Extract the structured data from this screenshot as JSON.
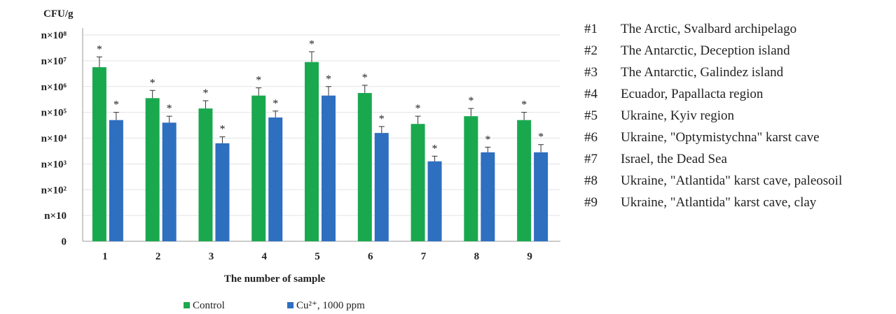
{
  "chart_data": {
    "type": "bar",
    "ylabel": "CFU/g",
    "xlabel": "The number  of sample",
    "scale": "log",
    "y_tick_labels": [
      "0",
      "n×10",
      "n×10²",
      "n×10³",
      "n×10⁴",
      "n×10⁵",
      "n×10⁶",
      "n×10⁷",
      "n×10⁸"
    ],
    "ylim_exponent": [
      0,
      8
    ],
    "categories": [
      "1",
      "2",
      "3",
      "4",
      "5",
      "6",
      "7",
      "8",
      "9"
    ],
    "series": [
      {
        "name": "Control",
        "color": "#1aa84f",
        "values_log10": [
          6.75,
          5.55,
          5.15,
          5.65,
          6.95,
          5.75,
          4.55,
          4.85,
          4.7
        ],
        "errors_log10": [
          0.4,
          0.3,
          0.3,
          0.3,
          0.4,
          0.3,
          0.3,
          0.3,
          0.3
        ],
        "significance": [
          "*",
          "*",
          "*",
          "*",
          "*",
          "*",
          "*",
          "*",
          "*"
        ]
      },
      {
        "name": "Cu²⁺, 1000 ppm",
        "color": "#2e6fbf",
        "values_log10": [
          4.7,
          4.6,
          3.8,
          4.8,
          5.65,
          4.2,
          3.1,
          3.45,
          3.45
        ],
        "errors_log10": [
          0.3,
          0.25,
          0.25,
          0.25,
          0.35,
          0.25,
          0.2,
          0.2,
          0.3
        ],
        "significance": [
          "*",
          "*",
          "*",
          "*",
          "*",
          "*",
          "*",
          "*",
          "*"
        ]
      }
    ],
    "grid": true,
    "legend_position": "bottom"
  },
  "sample_legend": [
    {
      "num": "#1",
      "text": "The Arctic, Svalbard archipelago"
    },
    {
      "num": "#2",
      "text": "The Antarctic, Deception island"
    },
    {
      "num": "#3",
      "text": "The Antarctic, Galindez island"
    },
    {
      "num": "#4",
      "text": "Ecuador, Papallacta region"
    },
    {
      "num": "#5",
      "text": "Ukraine, Kyiv region"
    },
    {
      "num": "#6",
      "text": "Ukraine, \"Optymistychna\" karst cave"
    },
    {
      "num": "#7",
      "text": "Israel, the Dead Sea"
    },
    {
      "num": "#8",
      "text": "Ukraine, \"Atlantida\" karst cave, paleosoil"
    },
    {
      "num": "#9",
      "text": "Ukraine, \"Atlantida\" karst cave, clay"
    }
  ]
}
